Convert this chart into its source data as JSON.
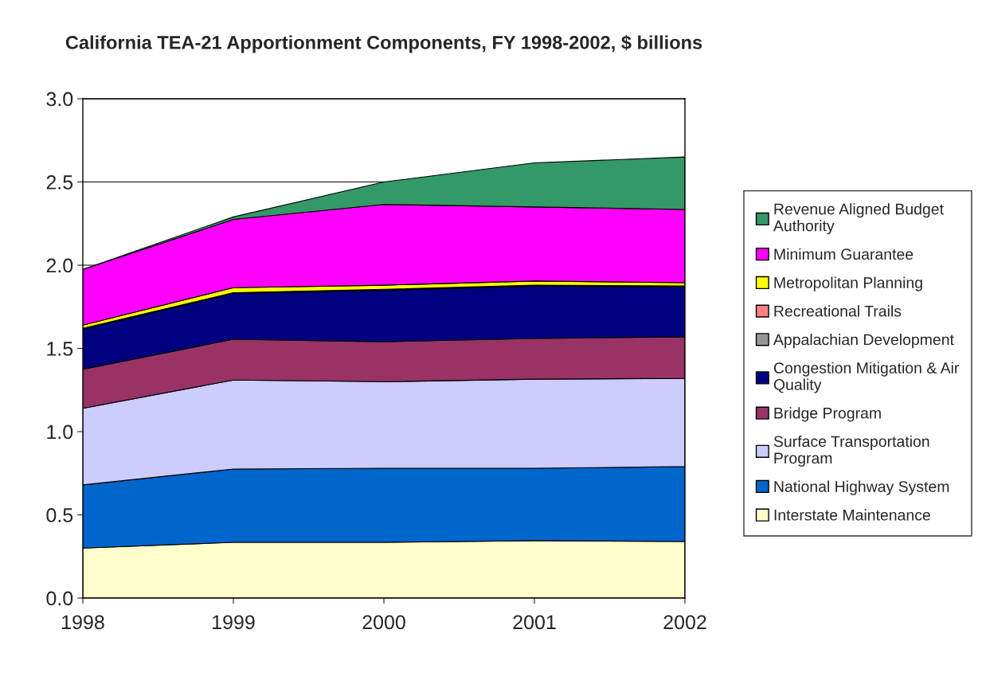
{
  "chart_data": {
    "type": "area",
    "stacked": true,
    "title": "California TEA-21 Apportionment Components, FY 1998-2002, $ billions",
    "x": [
      1998,
      1999,
      2000,
      2001,
      2002
    ],
    "series": [
      {
        "name": "Interstate Maintenance",
        "color": "#ffffcc",
        "values": [
          0.3,
          0.335,
          0.335,
          0.345,
          0.34
        ]
      },
      {
        "name": "National Highway System",
        "color": "#0066cc",
        "values": [
          0.38,
          0.44,
          0.445,
          0.435,
          0.45
        ]
      },
      {
        "name": "Surface Transportation Program",
        "color": "#ccccff",
        "values": [
          0.46,
          0.535,
          0.52,
          0.535,
          0.53
        ]
      },
      {
        "name": "Bridge Program",
        "color": "#993366",
        "values": [
          0.235,
          0.245,
          0.24,
          0.245,
          0.25
        ]
      },
      {
        "name": "Congestion Mitigation & Air Quality",
        "color": "#000080",
        "values": [
          0.24,
          0.275,
          0.31,
          0.315,
          0.3
        ]
      },
      {
        "name": "Appalachian Development",
        "color": "#969696",
        "values": [
          null,
          null,
          null,
          null,
          null
        ]
      },
      {
        "name": "Recreational Trails",
        "color": "#ff8080",
        "values": [
          0.005,
          0.005,
          0.005,
          0.005,
          0.005
        ]
      },
      {
        "name": "Metropolitan Planning",
        "color": "#ffff00",
        "values": [
          0.02,
          0.03,
          0.025,
          0.025,
          0.02
        ]
      },
      {
        "name": "Minimum Guarantee",
        "color": "#ff00ff",
        "values": [
          0.335,
          0.41,
          0.485,
          0.445,
          0.44
        ]
      },
      {
        "name": "Revenue Aligned Budget Authority",
        "color": "#339966",
        "values": [
          0,
          0.015,
          0.135,
          0.265,
          0.315
        ]
      }
    ],
    "xlim": [
      1998,
      2002
    ],
    "xticks": [
      1998,
      1999,
      2000,
      2001,
      2002
    ],
    "ylim": [
      0,
      3.0
    ],
    "yticks": [
      {
        "value": 0,
        "label": "0.0"
      },
      {
        "value": 0.5,
        "label": "0.5"
      },
      {
        "value": 1.0,
        "label": "1.0"
      },
      {
        "value": 1.5,
        "label": "1.5"
      },
      {
        "value": 2.0,
        "label": "2.0"
      },
      {
        "value": 2.5,
        "label": "2.5"
      },
      {
        "value": 3.0,
        "label": "3.0"
      }
    ],
    "grid": "y",
    "legend": "right"
  }
}
